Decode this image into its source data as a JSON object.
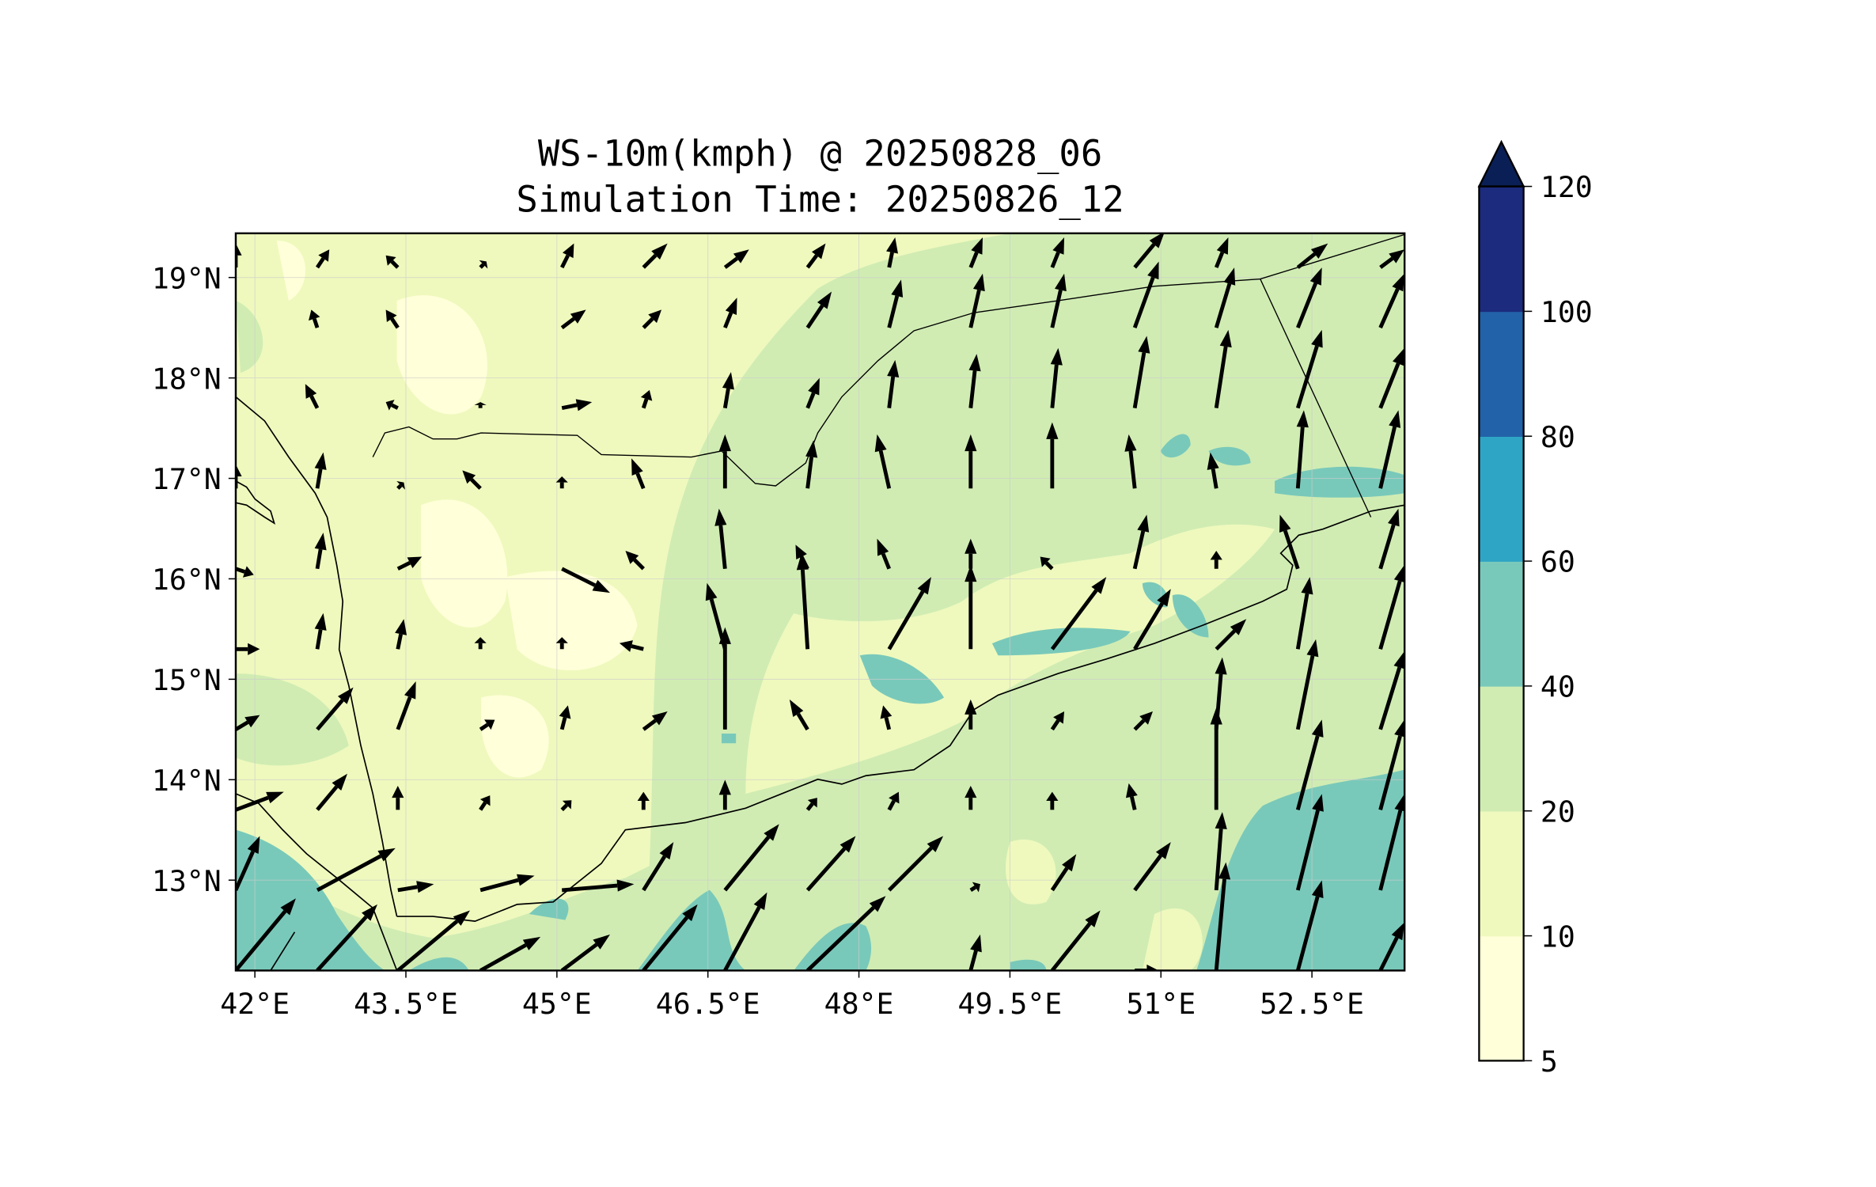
{
  "chart_data": {
    "type": "heatmap",
    "title": "WS-10m(kmph) @ 20250828_06",
    "subtitle": "Simulation Time: 20250826_12",
    "xlabel": "",
    "ylabel": "",
    "xlim": [
      41.81,
      53.42
    ],
    "ylim": [
      12.1,
      19.44
    ],
    "x_ticks": [
      42,
      43.5,
      45,
      46.5,
      48,
      49.5,
      51,
      52.5
    ],
    "x_tick_labels": [
      "42°E",
      "43.5°E",
      "45°E",
      "46.5°E",
      "48°E",
      "49.5°E",
      "51°E",
      "52.5°E"
    ],
    "y_ticks": [
      13,
      14,
      15,
      16,
      17,
      18,
      19
    ],
    "y_tick_labels": [
      "13°N",
      "14°N",
      "15°N",
      "16°N",
      "17°N",
      "18°N",
      "19°N"
    ],
    "grid": true,
    "colorbar": {
      "levels": [
        5,
        10,
        20,
        40,
        60,
        80,
        100,
        120
      ],
      "tick_labels": [
        "5",
        "10",
        "20",
        "40",
        "60",
        "80",
        "100",
        "120"
      ],
      "colors": [
        "#ffffd9",
        "#eff9bd",
        "#d0ecb3",
        "#79c9ba",
        "#2fa5c5",
        "#2262a8",
        "#1c2b7d"
      ],
      "extend_color": "#0a1f55",
      "extend": "max",
      "placement": "right"
    },
    "quiver": {
      "lons": [
        41.81,
        42.62,
        43.42,
        44.24,
        45.05,
        45.86,
        46.67,
        47.49,
        48.3,
        49.11,
        49.92,
        50.74,
        51.55,
        52.36,
        53.18
      ],
      "lats": [
        12.1,
        12.9,
        13.7,
        14.5,
        15.3,
        16.1,
        16.9,
        17.7,
        18.5,
        19.1
      ],
      "u": [
        [
          50,
          50,
          60,
          50,
          40,
          45,
          35,
          65,
          0,
          8,
          40,
          20,
          8,
          20,
          20
        ],
        [
          20,
          65,
          30,
          45,
          60,
          25,
          45,
          40,
          45,
          8,
          20,
          30,
          5,
          20,
          20
        ],
        [
          40,
          25,
          0,
          8,
          8,
          0,
          0,
          8,
          8,
          0,
          0,
          -5,
          0,
          20,
          20
        ],
        [
          20,
          30,
          15,
          12,
          5,
          20,
          0,
          -15,
          -5,
          0,
          10,
          15,
          5,
          15,
          20
        ],
        [
          20,
          5,
          5,
          0,
          0,
          -20,
          -15,
          -5,
          35,
          0,
          45,
          30,
          25,
          10,
          20
        ],
        [
          15,
          5,
          20,
          0,
          40,
          -15,
          -5,
          -10,
          -10,
          0,
          -10,
          10,
          0,
          -15,
          15
        ],
        [
          0,
          5,
          5,
          -15,
          0,
          -10,
          0,
          5,
          -10,
          0,
          0,
          -5,
          -5,
          5,
          15
        ],
        [
          0,
          -10,
          -10,
          0,
          25,
          5,
          5,
          10,
          5,
          5,
          5,
          10,
          10,
          20,
          20
        ],
        [
          0,
          -5,
          -10,
          0,
          20,
          15,
          10,
          20,
          10,
          10,
          10,
          20,
          15,
          20,
          20
        ],
        [
          0,
          10,
          -10,
          5,
          10,
          20,
          20,
          15,
          5,
          10,
          10,
          25,
          10,
          25,
          20
        ]
      ],
      "v": [
        [
          60,
          55,
          50,
          28,
          30,
          55,
          65,
          62,
          0,
          30,
          50,
          0,
          90,
          75,
          40
        ],
        [
          45,
          35,
          5,
          12,
          5,
          40,
          55,
          45,
          45,
          5,
          30,
          40,
          65,
          80,
          80
        ],
        [
          15,
          30,
          20,
          12,
          8,
          15,
          25,
          10,
          15,
          20,
          15,
          22,
          85,
          75,
          75
        ],
        [
          12,
          35,
          40,
          8,
          20,
          15,
          85,
          25,
          20,
          25,
          15,
          15,
          60,
          75,
          65
        ],
        [
          0,
          30,
          25,
          10,
          10,
          5,
          55,
          80,
          60,
          70,
          60,
          50,
          25,
          60,
          70
        ],
        [
          -5,
          30,
          10,
          0,
          -20,
          15,
          50,
          20,
          25,
          25,
          10,
          45,
          15,
          45,
          50
        ],
        [
          20,
          30,
          5,
          15,
          10,
          25,
          45,
          40,
          45,
          45,
          55,
          45,
          30,
          65,
          65
        ],
        [
          0,
          20,
          5,
          5,
          5,
          15,
          30,
          25,
          40,
          45,
          50,
          60,
          65,
          65,
          50
        ],
        [
          0,
          15,
          15,
          0,
          15,
          15,
          25,
          30,
          40,
          45,
          45,
          55,
          50,
          50,
          45
        ],
        [
          20,
          15,
          10,
          5,
          20,
          20,
          15,
          20,
          25,
          25,
          25,
          30,
          25,
          20,
          15
        ]
      ]
    }
  }
}
